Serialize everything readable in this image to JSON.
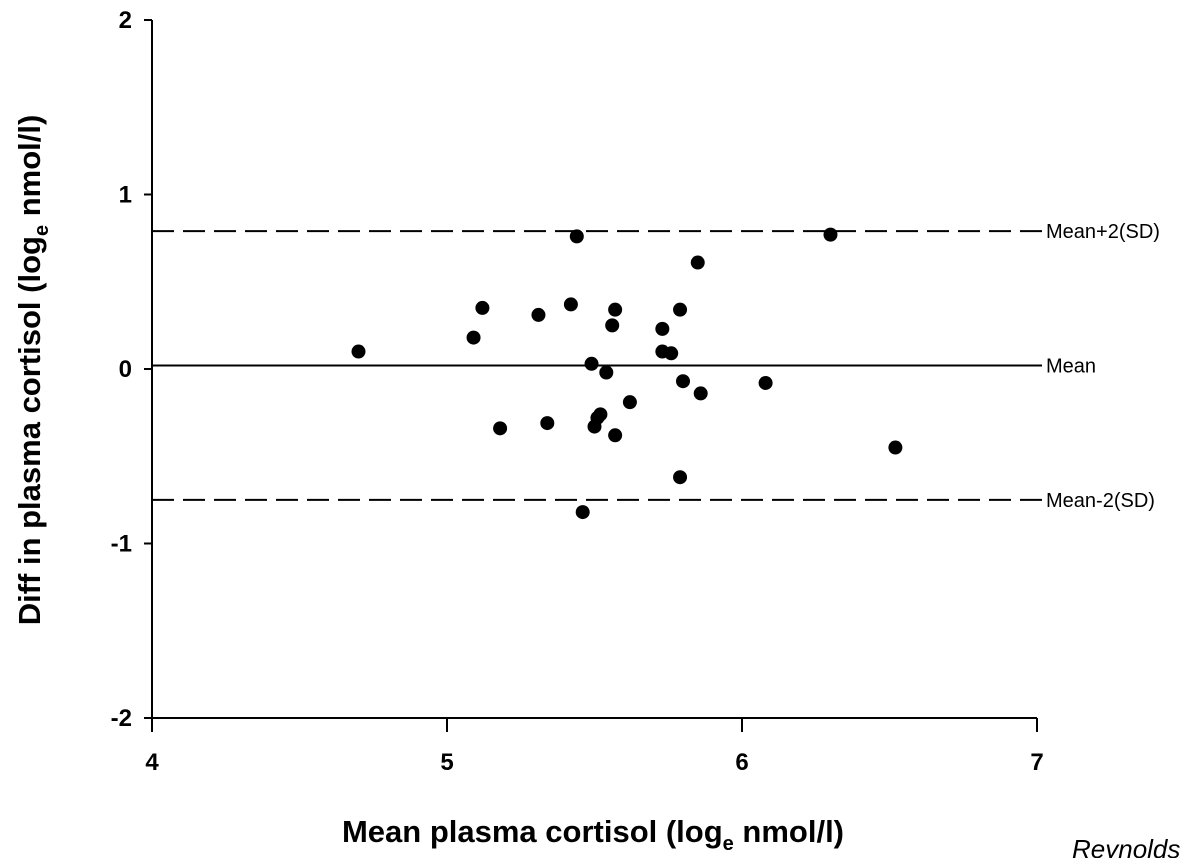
{
  "chart_data": {
    "type": "scatter",
    "title": "",
    "xlabel": "Mean plasma cortisol (log",
    "xlabel_sub": "e",
    "xlabel_tail": " nmol/l)",
    "ylabel": "Diff in plasma cortisol (log",
    "ylabel_sub": "e",
    "ylabel_tail": " nmol/l)",
    "xlim": [
      4,
      7
    ],
    "ylim": [
      -2,
      2
    ],
    "x_ticks": [
      4,
      5,
      6,
      7
    ],
    "x_tick_labels": [
      "4",
      "5",
      "6",
      "7"
    ],
    "y_ticks": [
      -2,
      -1,
      0,
      1,
      2
    ],
    "y_tick_labels": [
      "-2",
      "-1",
      "0",
      "1",
      "2"
    ],
    "grid": false,
    "reference_lines": [
      {
        "label": "Mean+2(SD)",
        "y": 0.79,
        "style": "dashed"
      },
      {
        "label": "Mean",
        "y": 0.02,
        "style": "solid"
      },
      {
        "label": "Mean-2(SD)",
        "y": -0.75,
        "style": "dashed"
      }
    ],
    "points": [
      {
        "x": 4.7,
        "y": 0.1
      },
      {
        "x": 5.09,
        "y": 0.18
      },
      {
        "x": 5.12,
        "y": 0.35
      },
      {
        "x": 5.18,
        "y": -0.34
      },
      {
        "x": 5.31,
        "y": 0.31
      },
      {
        "x": 5.34,
        "y": -0.31
      },
      {
        "x": 5.42,
        "y": 0.37
      },
      {
        "x": 5.44,
        "y": 0.76
      },
      {
        "x": 5.46,
        "y": -0.82
      },
      {
        "x": 5.49,
        "y": 0.03
      },
      {
        "x": 5.5,
        "y": -0.33
      },
      {
        "x": 5.51,
        "y": -0.28
      },
      {
        "x": 5.52,
        "y": -0.26
      },
      {
        "x": 5.54,
        "y": -0.02
      },
      {
        "x": 5.56,
        "y": 0.25
      },
      {
        "x": 5.57,
        "y": 0.34
      },
      {
        "x": 5.57,
        "y": -0.38
      },
      {
        "x": 5.62,
        "y": -0.19
      },
      {
        "x": 5.73,
        "y": 0.23
      },
      {
        "x": 5.73,
        "y": 0.1
      },
      {
        "x": 5.76,
        "y": 0.09
      },
      {
        "x": 5.79,
        "y": 0.34
      },
      {
        "x": 5.79,
        "y": -0.62
      },
      {
        "x": 5.8,
        "y": -0.07
      },
      {
        "x": 5.85,
        "y": 0.61
      },
      {
        "x": 5.86,
        "y": -0.14
      },
      {
        "x": 6.08,
        "y": -0.08
      },
      {
        "x": 6.3,
        "y": 0.77
      },
      {
        "x": 6.52,
        "y": -0.45
      }
    ]
  },
  "corner_text": "Reynolds"
}
